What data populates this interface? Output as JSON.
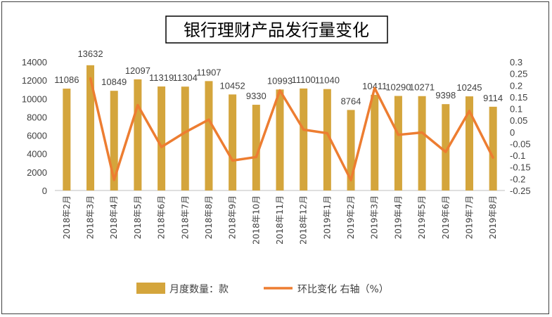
{
  "chart_data": {
    "type": "bar",
    "title": "银行理财产品发行量变化",
    "categories": [
      "2018年2月",
      "2018年3月",
      "2018年4月",
      "2018年5月",
      "2018年6月",
      "2018年7月",
      "2018年8月",
      "2018年9月",
      "2018年10月",
      "2018年11月",
      "2018年12月",
      "2019年1月",
      "2019年2月",
      "2019年3月",
      "2019年4月",
      "2019年5月",
      "2019年6月",
      "2019年7月",
      "2019年8月"
    ],
    "series": [
      {
        "name": "月度数量：款",
        "type": "bar",
        "axis": "left",
        "color": "#d4a53c",
        "values": [
          11086,
          13632,
          10849,
          12097,
          11319,
          11304,
          11907,
          10452,
          9330,
          10993,
          11100,
          11040,
          8764,
          10411,
          10290,
          10271,
          9398,
          10245,
          9114
        ]
      },
      {
        "name": "环比变化 右轴（%）",
        "type": "line",
        "axis": "right",
        "color": "#ed7d31",
        "values": [
          null,
          0.23,
          -0.205,
          0.115,
          -0.064,
          -0.001,
          0.053,
          -0.122,
          -0.107,
          0.178,
          0.01,
          -0.005,
          -0.206,
          0.188,
          -0.012,
          -0.002,
          -0.085,
          0.09,
          -0.11
        ]
      }
    ],
    "yaxis_left": {
      "ylim": [
        0,
        14000
      ],
      "ticks": [
        "0",
        "2000",
        "4000",
        "6000",
        "8000",
        "10000",
        "12000",
        "14000"
      ]
    },
    "yaxis_right": {
      "ylim": [
        -0.25,
        0.3
      ],
      "ticks": [
        "-0.25",
        "-0.2",
        "-0.15",
        "-0.1",
        "-0.05",
        "0",
        "0.05",
        "0.1",
        "0.15",
        "0.2",
        "0.25",
        "0.3"
      ]
    },
    "grid": false,
    "legend_position": "bottom"
  }
}
